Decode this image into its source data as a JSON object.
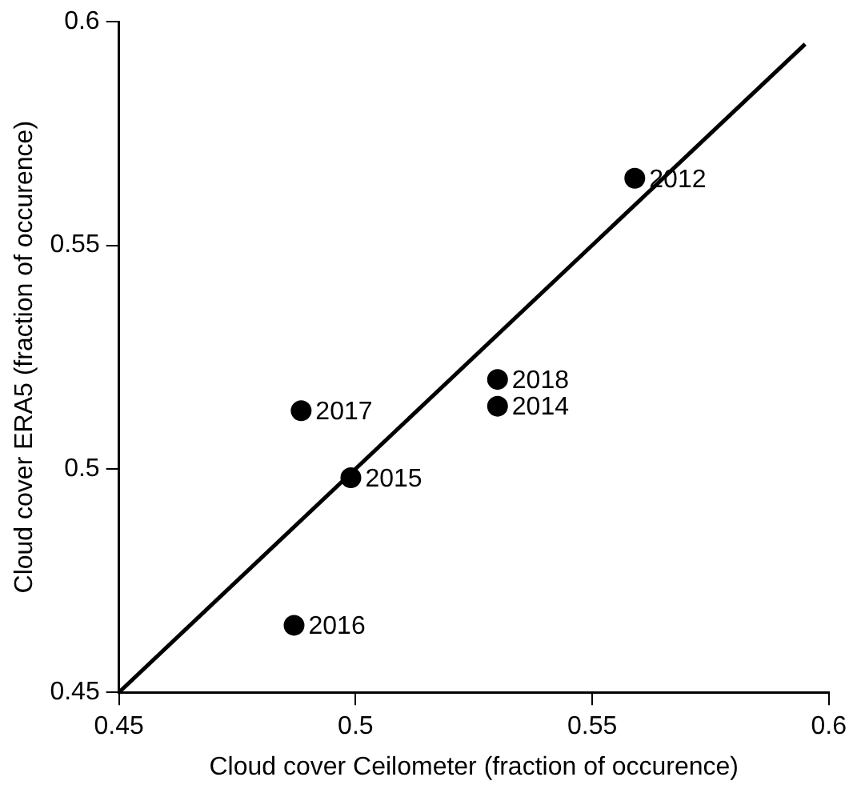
{
  "chart_data": {
    "type": "scatter",
    "xlabel": "Cloud cover Ceilometer (fraction of occurence)",
    "ylabel": "Cloud cover ERA5 (fraction of occurence)",
    "xlim": [
      0.45,
      0.6
    ],
    "ylim": [
      0.45,
      0.6
    ],
    "xticks": [
      0.45,
      0.5,
      0.55,
      0.6
    ],
    "yticks": [
      0.45,
      0.5,
      0.55,
      0.6
    ],
    "grid": false,
    "legend": false,
    "marker": "circle",
    "series": [
      {
        "color": "#000000",
        "x": [
          0.559,
          0.53,
          0.53,
          0.4885,
          0.499,
          0.487
        ],
        "values": [
          0.565,
          0.52,
          0.514,
          0.513,
          0.498,
          0.465
        ]
      },
      {
        "type": "line",
        "color": "#000000",
        "line_style": "solid",
        "marker": "none",
        "x": [
          0.45,
          0.595
        ],
        "values": [
          0.45,
          0.595
        ]
      }
    ],
    "annotations": [
      {
        "text": "2012",
        "x": 0.559,
        "y": 0.565
      },
      {
        "text": "2018",
        "x": 0.53,
        "y": 0.52
      },
      {
        "text": "2014",
        "x": 0.53,
        "y": 0.514
      },
      {
        "text": "2017",
        "x": 0.4885,
        "y": 0.513
      },
      {
        "text": "2015",
        "x": 0.499,
        "y": 0.498
      },
      {
        "text": "2016",
        "x": 0.487,
        "y": 0.465
      }
    ]
  }
}
